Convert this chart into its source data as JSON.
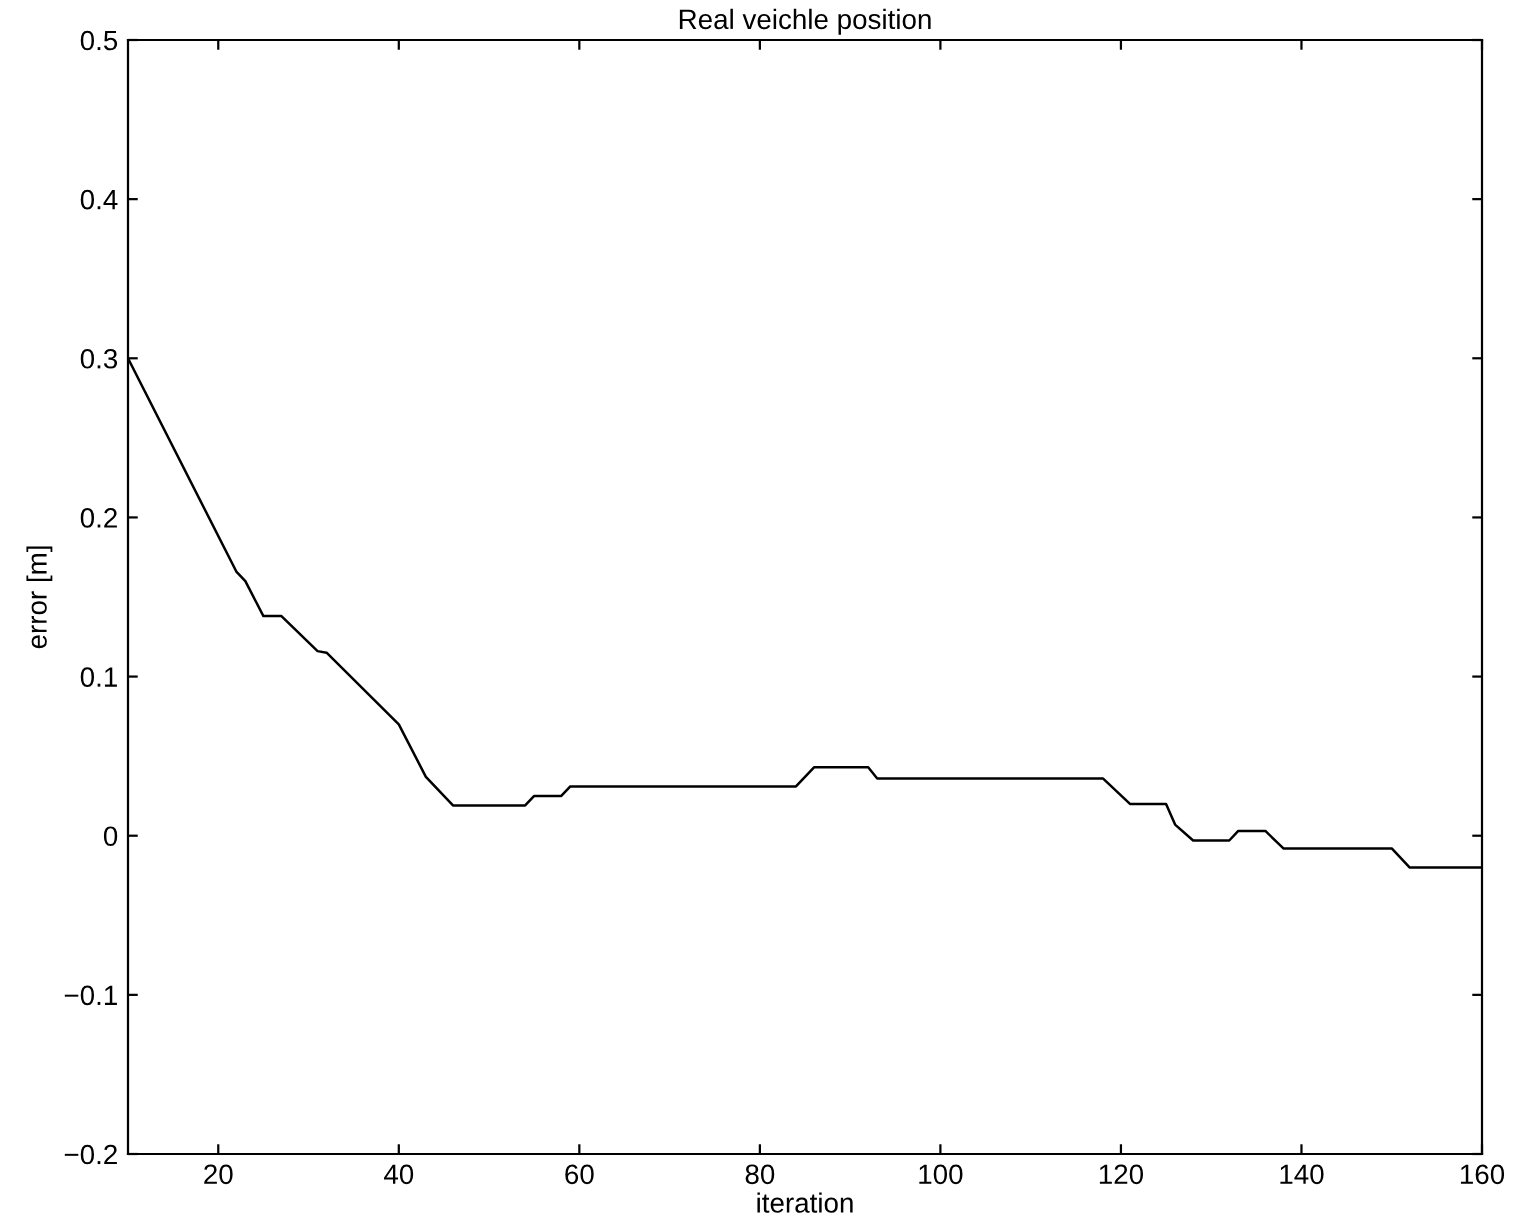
{
  "chart_data": {
    "type": "line",
    "title": "Real veichle position",
    "xlabel": "iteration",
    "ylabel": "error [m]",
    "xlim": [
      10,
      160
    ],
    "ylim": [
      -0.2,
      0.5
    ],
    "xticks": [
      20,
      40,
      60,
      80,
      100,
      120,
      140,
      160
    ],
    "yticks": [
      {
        "value": -0.2,
        "label": "−0.2"
      },
      {
        "value": -0.1,
        "label": "−0.1"
      },
      0,
      0.1,
      0.2,
      0.3,
      0.4,
      0.5
    ],
    "grid": false,
    "legend": false,
    "marker": "none",
    "line_style": "solid",
    "series": [
      {
        "color": "#000000",
        "x": [
          10,
          22,
          23,
          25,
          27,
          31,
          32,
          40,
          43,
          46,
          54,
          55,
          58,
          59,
          84,
          86,
          92,
          93,
          118,
          121,
          125,
          126,
          128,
          132,
          133,
          136,
          138,
          150,
          152,
          160
        ],
        "values": [
          0.3,
          0.166,
          0.16,
          0.138,
          0.138,
          0.116,
          0.115,
          0.07,
          0.037,
          0.019,
          0.019,
          0.025,
          0.025,
          0.031,
          0.031,
          0.043,
          0.043,
          0.036,
          0.036,
          0.02,
          0.02,
          0.007,
          -0.003,
          -0.003,
          0.003,
          0.003,
          -0.008,
          -0.008,
          -0.02,
          -0.02
        ]
      }
    ]
  }
}
